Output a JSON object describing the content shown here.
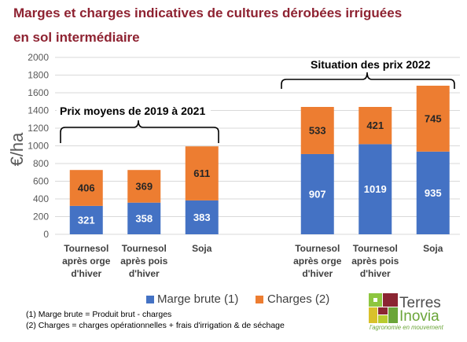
{
  "chart_data": {
    "type": "bar",
    "bar_mode": "stacked",
    "title_lines": [
      "Marges et charges indicatives de cultures dérobées irriguées",
      "en sol intermédiaire"
    ],
    "title_color": "#8E2231",
    "ylabel": "€/ha",
    "ylim": [
      0,
      2000
    ],
    "yticks": [
      0,
      200,
      400,
      600,
      800,
      1000,
      1200,
      1400,
      1600,
      1800,
      2000
    ],
    "grid": true,
    "legend_position": "bottom",
    "categories": [
      "Tournesol après orge d'hiver",
      "Tournesol après pois d'hiver",
      "Soja",
      "Tournesol après orge d'hiver",
      "Tournesol après pois d'hiver",
      "Soja"
    ],
    "groups": [
      {
        "label": "Prix moyens de 2019 à 2021",
        "category_indices": [
          0,
          1,
          2
        ]
      },
      {
        "label": "Situation des prix 2022",
        "category_indices": [
          3,
          4,
          5
        ]
      }
    ],
    "series": [
      {
        "name": "Marge brute (1)",
        "color": "#4472C4",
        "label_color": "#FFFFFF",
        "values": [
          321,
          358,
          383,
          907,
          1019,
          935
        ]
      },
      {
        "name": "Charges (2)",
        "color": "#ED7D31",
        "label_color": "#262626",
        "values": [
          406,
          369,
          611,
          533,
          421,
          745
        ]
      }
    ]
  },
  "footnotes": [
    "(1) Marge brute = Produit brut - charges",
    "(2) Charges = charges opérationnelles + frais d'irrigation & de séchage"
  ],
  "logo": {
    "name_line1": "Terres",
    "name_line2": "Inovia",
    "tagline": "l'agronomie en mouvement",
    "icon": "terres-inovia-logo-icon"
  }
}
